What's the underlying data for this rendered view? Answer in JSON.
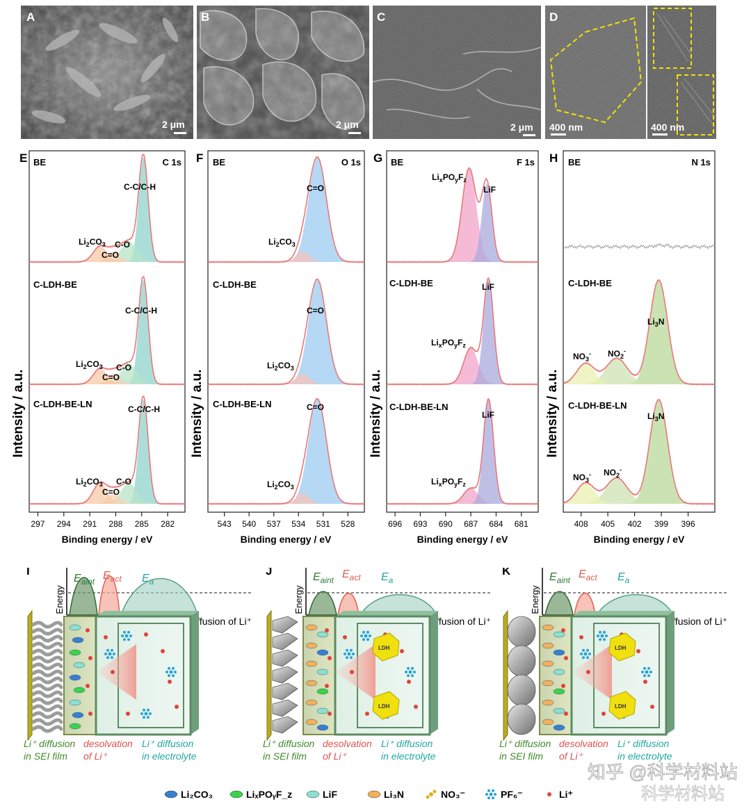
{
  "sem_panels": [
    {
      "letter": "A",
      "scale": "2 μm"
    },
    {
      "letter": "B",
      "scale": "2 μm"
    },
    {
      "letter": "C",
      "scale": "2 μm"
    },
    {
      "letter": "D",
      "scale_left": "400 nm",
      "scale_right": "400 nm"
    }
  ],
  "xps": {
    "ylabel": "Intensity / a.u.",
    "xlabel": "Binding energy / eV",
    "sample_labels": [
      "BE",
      "C-LDH-BE",
      "C-LDH-BE-LN"
    ],
    "panels": [
      {
        "letter": "E",
        "region": "C 1s",
        "ticks": [
          "297",
          "294",
          "291",
          "288",
          "285",
          "282"
        ],
        "peaks": [
          "C-C/C-H",
          "C-O",
          "C=O",
          "Li2CO3"
        ]
      },
      {
        "letter": "F",
        "region": "O 1s",
        "ticks": [
          "543",
          "540",
          "537",
          "534",
          "531",
          "528"
        ],
        "peaks": [
          "C=O",
          "Li2CO3"
        ]
      },
      {
        "letter": "G",
        "region": "F 1s",
        "ticks": [
          "696",
          "693",
          "690",
          "687",
          "684",
          "681"
        ],
        "peaks": [
          "LixPOyFz",
          "LiF"
        ]
      },
      {
        "letter": "H",
        "region": "N 1s",
        "ticks": [
          "408",
          "405",
          "402",
          "399",
          "396"
        ],
        "peaks": [
          "Li3N",
          "NO3-",
          "NO2-"
        ]
      }
    ]
  },
  "chart_data": [
    {
      "type": "line",
      "panel": "E",
      "xlabel": "Binding energy / eV",
      "ylabel": "Intensity / a.u.",
      "xlim": [
        298,
        280
      ],
      "x_reversed": true,
      "series": [
        {
          "name": "BE",
          "peaks": [
            {
              "label": "C-C/C-H",
              "x": 284.8,
              "height": 1.0
            },
            {
              "label": "C-O",
              "x": 286.5,
              "height": 0.2
            },
            {
              "label": "C=O",
              "x": 288.2,
              "height": 0.1
            },
            {
              "label": "Li2CO3",
              "x": 289.8,
              "height": 0.15
            }
          ]
        },
        {
          "name": "C-LDH-BE",
          "peaks": [
            {
              "label": "C-C/C-H",
              "x": 284.8,
              "height": 1.0
            },
            {
              "label": "C-O",
              "x": 286.5,
              "height": 0.2
            },
            {
              "label": "C=O",
              "x": 288.2,
              "height": 0.1
            },
            {
              "label": "Li2CO3",
              "x": 289.8,
              "height": 0.15
            }
          ]
        },
        {
          "name": "C-LDH-BE-LN",
          "peaks": [
            {
              "label": "C-C/C-H",
              "x": 284.8,
              "height": 1.0
            },
            {
              "label": "C-O",
              "x": 286.5,
              "height": 0.2
            },
            {
              "label": "C=O",
              "x": 288.2,
              "height": 0.1
            },
            {
              "label": "Li2CO3",
              "x": 289.8,
              "height": 0.2
            }
          ]
        }
      ]
    },
    {
      "type": "line",
      "panel": "F",
      "xlabel": "Binding energy / eV",
      "ylabel": "Intensity / a.u.",
      "xlim": [
        545,
        526
      ],
      "x_reversed": true,
      "series": [
        {
          "name": "BE",
          "peaks": [
            {
              "label": "C=O",
              "x": 531.7,
              "height": 1.0
            },
            {
              "label": "Li2CO3",
              "x": 533.5,
              "height": 0.1
            }
          ]
        },
        {
          "name": "C-LDH-BE",
          "peaks": [
            {
              "label": "C=O",
              "x": 531.7,
              "height": 1.0
            },
            {
              "label": "Li2CO3",
              "x": 533.5,
              "height": 0.1
            }
          ]
        },
        {
          "name": "C-LDH-BE-LN",
          "peaks": [
            {
              "label": "C=O",
              "x": 531.7,
              "height": 1.0
            },
            {
              "label": "Li2CO3",
              "x": 533.5,
              "height": 0.1
            }
          ]
        }
      ]
    },
    {
      "type": "line",
      "panel": "G",
      "xlabel": "Binding energy / eV",
      "ylabel": "Intensity / a.u.",
      "xlim": [
        697,
        679
      ],
      "x_reversed": true,
      "series": [
        {
          "name": "BE",
          "peaks": [
            {
              "label": "LixPOyFz",
              "x": 687.2,
              "height": 0.9
            },
            {
              "label": "LiF",
              "x": 685.1,
              "height": 0.75
            }
          ]
        },
        {
          "name": "C-LDH-BE",
          "peaks": [
            {
              "label": "LixPOyFz",
              "x": 687.0,
              "height": 0.35
            },
            {
              "label": "LiF",
              "x": 684.9,
              "height": 1.0
            }
          ]
        },
        {
          "name": "C-LDH-BE-LN",
          "peaks": [
            {
              "label": "LixPOyFz",
              "x": 687.0,
              "height": 0.15
            },
            {
              "label": "LiF",
              "x": 684.9,
              "height": 1.0
            }
          ]
        }
      ]
    },
    {
      "type": "line",
      "panel": "H",
      "xlabel": "Binding energy / eV",
      "ylabel": "Intensity / a.u.",
      "xlim": [
        410,
        393
      ],
      "x_reversed": true,
      "series": [
        {
          "name": "BE",
          "peaks": []
        },
        {
          "name": "C-LDH-BE",
          "peaks": [
            {
              "label": "Li3N",
              "x": 399.3,
              "height": 1.0
            },
            {
              "label": "NO2-",
              "x": 404.0,
              "height": 0.25
            },
            {
              "label": "NO3-",
              "x": 407.5,
              "height": 0.2
            }
          ]
        },
        {
          "name": "C-LDH-BE-LN",
          "peaks": [
            {
              "label": "Li3N",
              "x": 399.3,
              "height": 1.0
            },
            {
              "label": "NO2-",
              "x": 404.0,
              "height": 0.25
            },
            {
              "label": "NO3-",
              "x": 407.5,
              "height": 0.2
            }
          ]
        }
      ]
    }
  ],
  "schematics": {
    "panels": [
      "I",
      "J",
      "K"
    ],
    "ylabel": "Energy",
    "xlabel": "Diffusion of Li⁺",
    "barriers": [
      "E",
      "aint",
      "E",
      "act",
      "E",
      "a"
    ],
    "captions": [
      "Li⁺ diffusion",
      "in SEI film",
      "desolvation",
      "of Li⁺",
      "Li⁺ diffusion",
      "in electrolyte"
    ],
    "ldh_label": "LDH"
  },
  "legend": [
    {
      "label": "Li₂CO₃",
      "color": "#3a7fd0"
    },
    {
      "label": "LiₓPOᵧF_z",
      "color": "#3bd34a"
    },
    {
      "label": "LiF",
      "color": "#8de0cf"
    },
    {
      "label": "Li₃N",
      "color": "#f4b05a"
    },
    {
      "label": "NO₃⁻",
      "color": "#e0b020"
    },
    {
      "label": "PF₆⁻",
      "color": "#2aa3d8"
    },
    {
      "label": "Li⁺",
      "color": "#e0443a"
    }
  ],
  "watermark": [
    "知乎 @科学材料站",
    "科学材料站"
  ],
  "colors": {
    "fit_line": "#e8787a",
    "blue_fill": "#9ccbf0",
    "teal_fill": "#8fd3cc",
    "pink_fill": "#f2a4c8",
    "green_fill": "#b9d89a",
    "sem_outline": "#f2e200",
    "schematic_green": "#5c8c62",
    "sei_caption": "#3f8a2a",
    "desolv_caption": "#e05050",
    "electrolyte_caption": "#22a8a0"
  }
}
